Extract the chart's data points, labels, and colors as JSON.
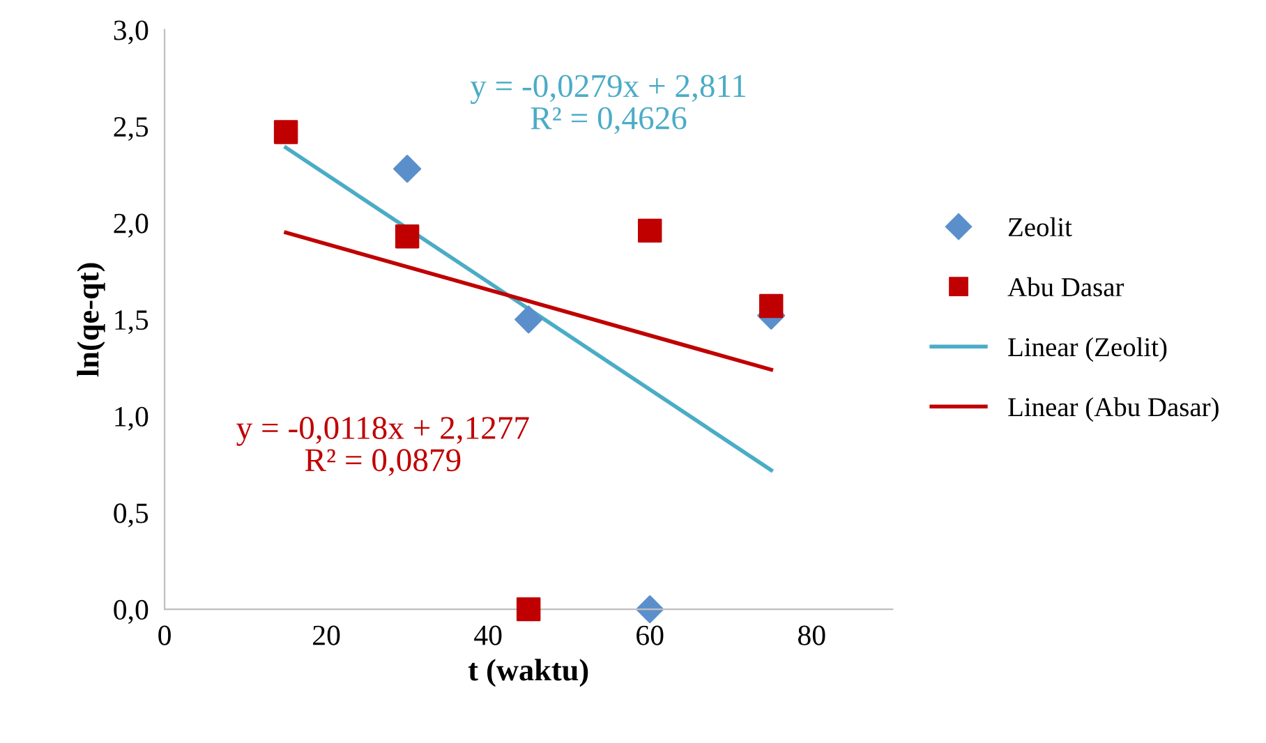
{
  "chart_data": {
    "type": "scatter",
    "xlabel": "t (waktu)",
    "ylabel": "ln(qe-qt)",
    "xlim": [
      0,
      90
    ],
    "xticks": [
      0,
      20,
      40,
      60,
      80
    ],
    "ylim": [
      0,
      3
    ],
    "yticks": [
      {
        "value": 0,
        "label": "0,0"
      },
      {
        "value": 0.5,
        "label": "0,5"
      },
      {
        "value": 1,
        "label": "1,0"
      },
      {
        "value": 1.5,
        "label": "1,5"
      },
      {
        "value": 2,
        "label": "2,0"
      },
      {
        "value": 2.5,
        "label": "2,5"
      },
      {
        "value": 3,
        "label": "3,0"
      }
    ],
    "grid": false,
    "legend": "right",
    "series": [
      {
        "name": "Zeolit",
        "marker": "diamond",
        "color": "#5b8fcc",
        "x": [
          30,
          45,
          60,
          75
        ],
        "values": [
          2.28,
          1.5,
          0.0,
          1.52
        ]
      },
      {
        "name": "Abu Dasar",
        "marker": "square",
        "color": "#c00000",
        "x": [
          15,
          30,
          45,
          60,
          75
        ],
        "values": [
          2.47,
          1.93,
          0.0,
          1.96,
          1.57
        ]
      },
      {
        "name": "Linear (Zeolit)",
        "type": "line",
        "color": "#4bacc6",
        "x": [
          15,
          75
        ],
        "values": [
          2.39,
          0.72
        ]
      },
      {
        "name": "Linear (Abu Dasar)",
        "type": "line",
        "color": "#c00000",
        "x": [
          15,
          75
        ],
        "values": [
          1.95,
          1.24
        ]
      }
    ],
    "annotations": [
      "y = -0,0279x + 2,811\nR² = 0,4626",
      "y = -0,0118x + 2,1277\nR² = 0,0879"
    ]
  }
}
